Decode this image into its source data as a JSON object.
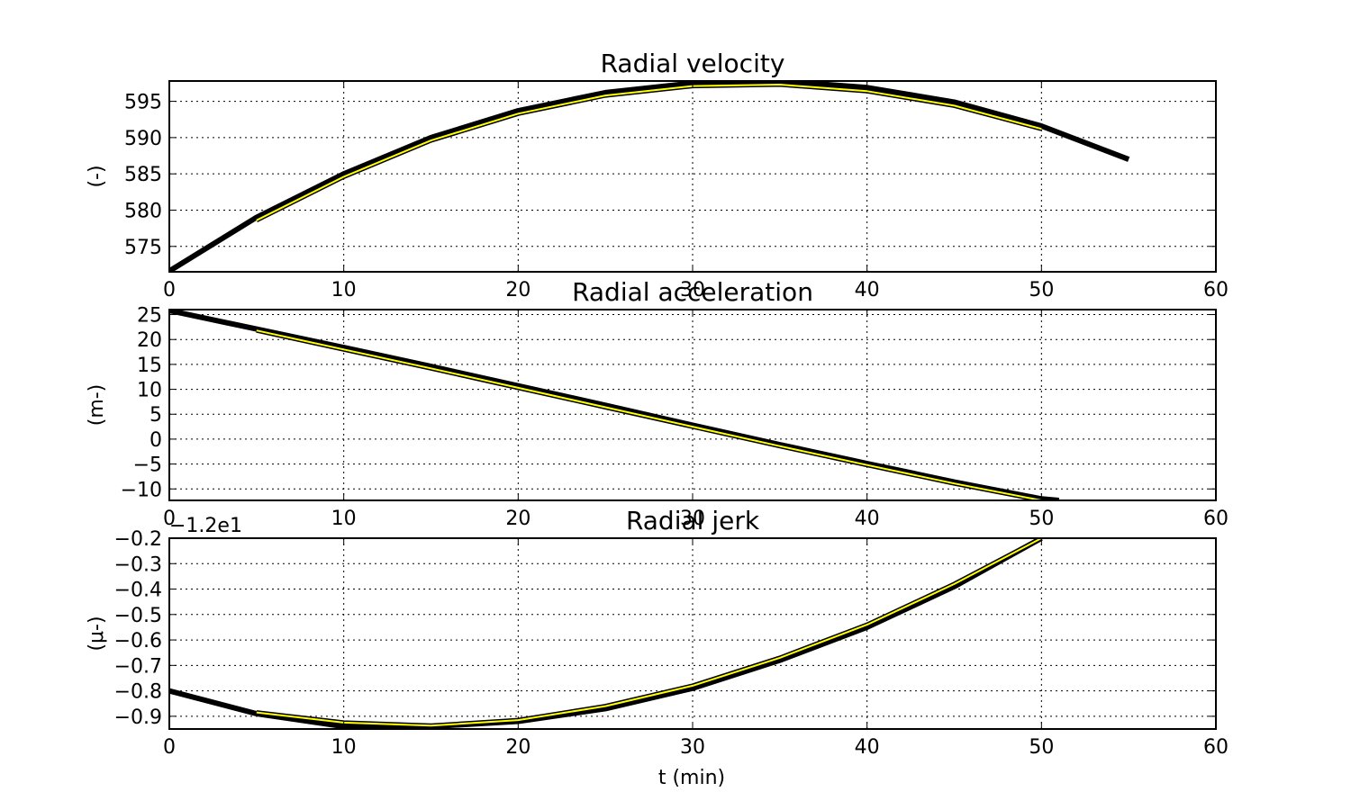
{
  "figure": {
    "xlabel": "t (min)"
  },
  "chart_data": [
    {
      "type": "line",
      "title": "Radial velocity",
      "xlabel": "",
      "ylabel": "(-)",
      "xlim": [
        0,
        60
      ],
      "ylim": [
        571.5,
        597.8
      ],
      "xticks": [
        0,
        10,
        20,
        30,
        40,
        50,
        60
      ],
      "yticks": [
        575,
        580,
        585,
        590,
        595
      ],
      "grid": true,
      "offset_text": "",
      "series": [
        {
          "style": "thick-black",
          "color": "#000000",
          "x": [
            0,
            5,
            10,
            15,
            20,
            25,
            30,
            35,
            40,
            45,
            50,
            55
          ],
          "y": [
            571.6,
            579.0,
            585.0,
            590.0,
            593.7,
            596.2,
            597.5,
            597.8,
            596.9,
            594.9,
            591.6,
            587.0
          ]
        },
        {
          "style": "thin-yellow-outlined",
          "color": "#ffff00",
          "x": [
            5,
            10,
            15,
            20,
            25,
            30,
            35,
            40,
            45,
            50
          ],
          "y": [
            578.6,
            584.6,
            589.6,
            593.3,
            595.8,
            597.1,
            597.3,
            596.4,
            594.4,
            591.2
          ]
        }
      ]
    },
    {
      "type": "line",
      "title": "Radial acceleration",
      "xlabel": "",
      "ylabel": "(m-)",
      "xlim": [
        0,
        60
      ],
      "ylim": [
        -12.3,
        26.0
      ],
      "xticks": [
        0,
        10,
        20,
        30,
        40,
        50,
        60
      ],
      "yticks": [
        -10,
        -5,
        0,
        5,
        10,
        15,
        20,
        25
      ],
      "grid": true,
      "offset_text": "",
      "series": [
        {
          "style": "thick-black",
          "color": "#000000",
          "x": [
            0,
            5,
            10,
            15,
            20,
            25,
            30,
            35,
            40,
            45,
            50,
            51
          ],
          "y": [
            25.8,
            22.1,
            18.4,
            14.6,
            10.7,
            6.8,
            2.8,
            -1.1,
            -4.9,
            -8.6,
            -12.0,
            -12.3
          ]
        },
        {
          "style": "thin-yellow-outlined",
          "color": "#ffff00",
          "x": [
            5,
            10,
            15,
            20,
            25,
            30,
            35,
            40,
            45,
            50
          ],
          "y": [
            21.8,
            18.0,
            14.2,
            10.3,
            6.4,
            2.5,
            -1.4,
            -5.2,
            -8.9,
            -12.3
          ]
        }
      ]
    },
    {
      "type": "line",
      "title": "Radial jerk",
      "xlabel": "t (min)",
      "ylabel": "(μ-)",
      "xlim": [
        0,
        60
      ],
      "ylim": [
        -0.95,
        -0.2
      ],
      "xticks": [
        0,
        10,
        20,
        30,
        40,
        50,
        60
      ],
      "yticks": [
        -0.9,
        -0.8,
        -0.7,
        -0.6,
        -0.5,
        -0.4,
        -0.3,
        -0.2
      ],
      "grid": true,
      "offset_text": "−1.2e1",
      "series": [
        {
          "style": "thick-black",
          "color": "#000000",
          "x": [
            0,
            5,
            10,
            15,
            20,
            25,
            30,
            35,
            40,
            45,
            50
          ],
          "y": [
            -0.8,
            -0.89,
            -0.94,
            -0.94,
            -0.92,
            -0.87,
            -0.79,
            -0.68,
            -0.55,
            -0.39,
            -0.2
          ]
        },
        {
          "style": "thin-yellow-outlined",
          "color": "#ffff00",
          "x": [
            5,
            10,
            15,
            20,
            25,
            30,
            35,
            40,
            45,
            50
          ],
          "y": [
            -0.885,
            -0.925,
            -0.937,
            -0.915,
            -0.86,
            -0.78,
            -0.67,
            -0.54,
            -0.38,
            -0.2
          ]
        }
      ]
    }
  ]
}
